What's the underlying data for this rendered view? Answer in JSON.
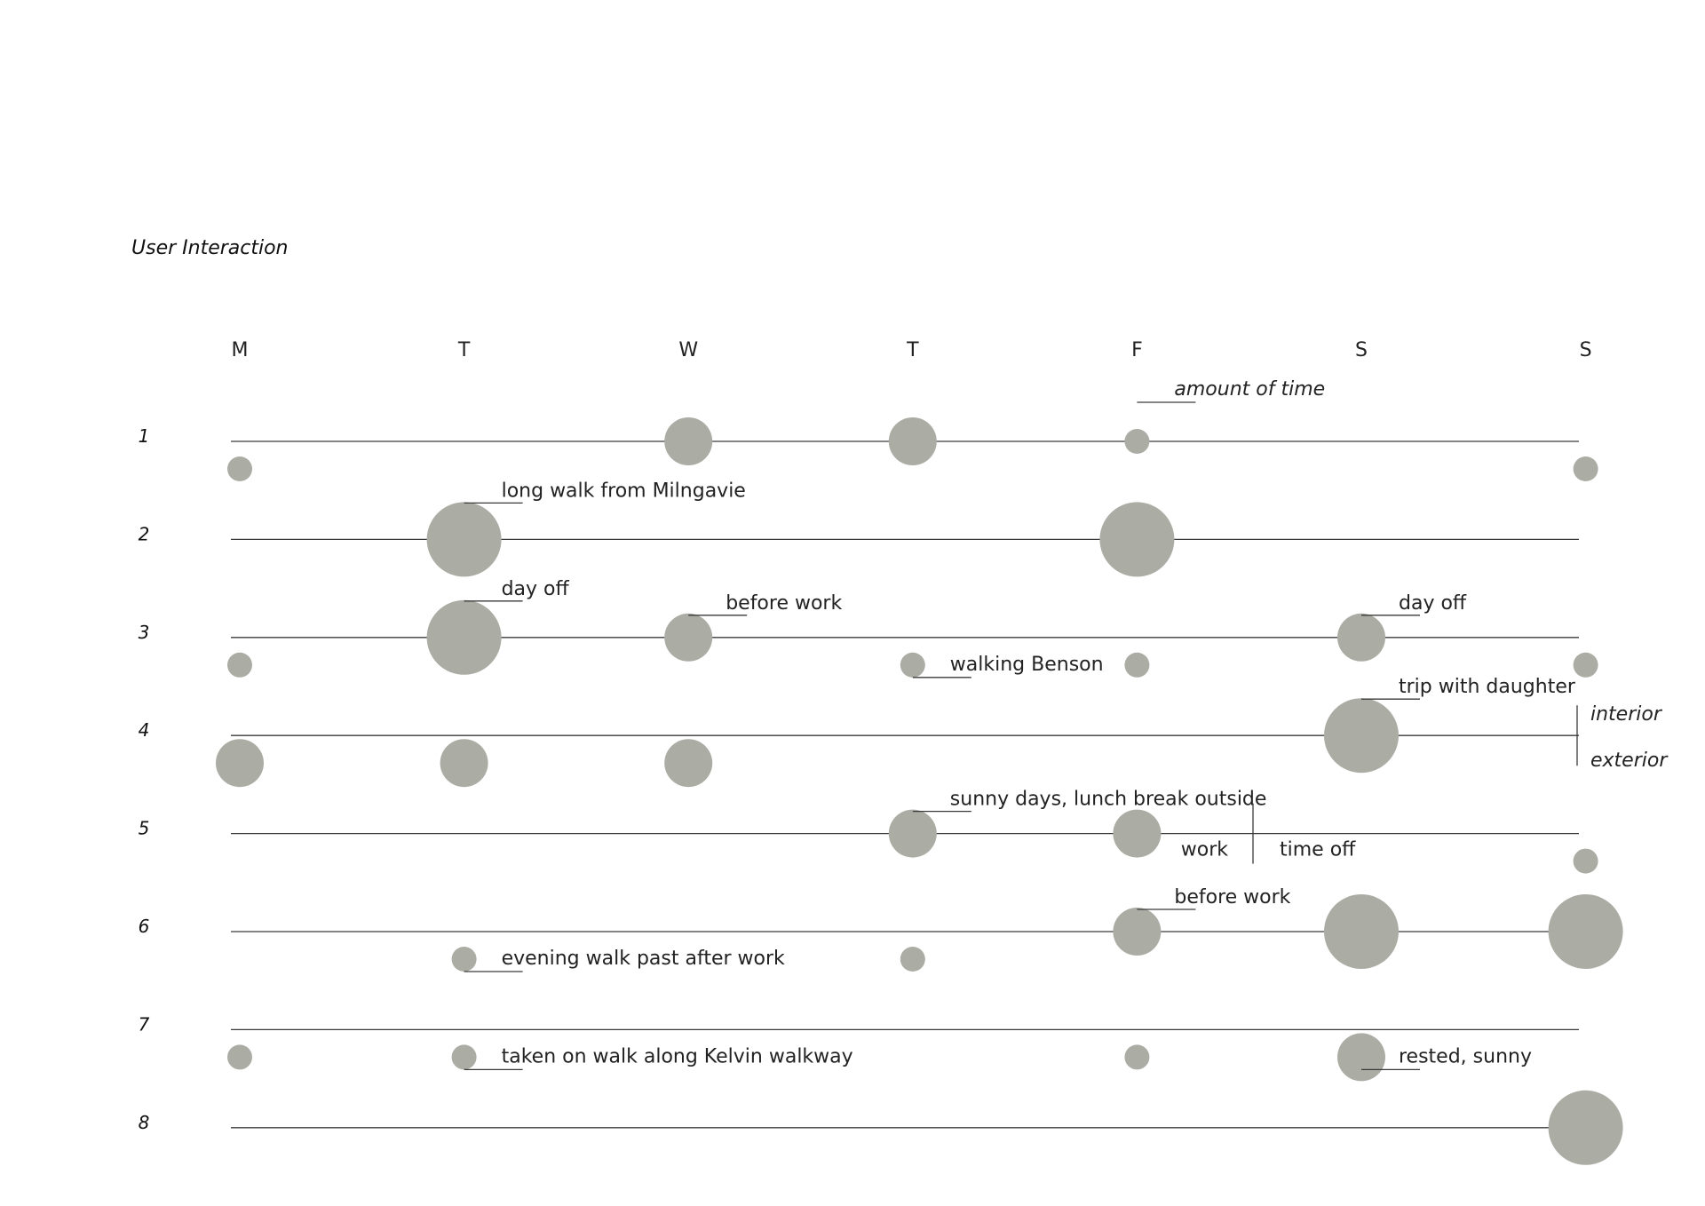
{
  "chart_data": {
    "type": "scatter",
    "title": "User Interaction",
    "days": [
      "M",
      "T",
      "W",
      "T",
      "F",
      "S",
      "S"
    ],
    "weeks": [
      "1",
      "2",
      "3",
      "4",
      "5",
      "6",
      "7",
      "8"
    ],
    "size_legend": "amount of time",
    "side_legend": {
      "above": "interior",
      "below": "exterior"
    },
    "side_legend_2": {
      "left": "work",
      "right": "time off"
    },
    "points": [
      {
        "week": 1,
        "day": 3,
        "place": "interior",
        "size": 2
      },
      {
        "week": 1,
        "day": 4,
        "place": "interior",
        "size": 2
      },
      {
        "week": 1,
        "day": 5,
        "place": "interior",
        "size": 1
      },
      {
        "week": 1,
        "day": 1,
        "place": "exterior",
        "size": 1
      },
      {
        "week": 1,
        "day": 7,
        "place": "exterior",
        "size": 1
      },
      {
        "week": 2,
        "day": 2,
        "place": "interior",
        "size": 3
      },
      {
        "week": 2,
        "day": 5,
        "place": "interior",
        "size": 3
      },
      {
        "week": 3,
        "day": 2,
        "place": "interior",
        "size": 3
      },
      {
        "week": 3,
        "day": 3,
        "place": "interior",
        "size": 2
      },
      {
        "week": 3,
        "day": 6,
        "place": "interior",
        "size": 2
      },
      {
        "week": 3,
        "day": 1,
        "place": "exterior",
        "size": 1
      },
      {
        "week": 3,
        "day": 4,
        "place": "exterior",
        "size": 1
      },
      {
        "week": 3,
        "day": 5,
        "place": "exterior",
        "size": 1
      },
      {
        "week": 3,
        "day": 7,
        "place": "exterior",
        "size": 1
      },
      {
        "week": 4,
        "day": 6,
        "place": "interior",
        "size": 3
      },
      {
        "week": 4,
        "day": 1,
        "place": "exterior",
        "size": 2
      },
      {
        "week": 4,
        "day": 2,
        "place": "exterior",
        "size": 2
      },
      {
        "week": 4,
        "day": 3,
        "place": "exterior",
        "size": 2
      },
      {
        "week": 5,
        "day": 4,
        "place": "interior",
        "size": 2
      },
      {
        "week": 5,
        "day": 5,
        "place": "interior",
        "size": 2
      },
      {
        "week": 5,
        "day": 7,
        "place": "exterior",
        "size": 1
      },
      {
        "week": 6,
        "day": 5,
        "place": "interior",
        "size": 2
      },
      {
        "week": 6,
        "day": 6,
        "place": "interior",
        "size": 3
      },
      {
        "week": 6,
        "day": 7,
        "place": "interior",
        "size": 3
      },
      {
        "week": 6,
        "day": 2,
        "place": "exterior",
        "size": 1
      },
      {
        "week": 6,
        "day": 4,
        "place": "exterior",
        "size": 1
      },
      {
        "week": 7,
        "day": 1,
        "place": "exterior",
        "size": 1
      },
      {
        "week": 7,
        "day": 2,
        "place": "exterior",
        "size": 1
      },
      {
        "week": 7,
        "day": 5,
        "place": "exterior",
        "size": 1
      },
      {
        "week": 7,
        "day": 6,
        "place": "exterior",
        "size": 2
      },
      {
        "week": 8,
        "day": 7,
        "place": "interior",
        "size": 3
      }
    ],
    "annotations": [
      {
        "week": 2,
        "day": 2,
        "position": "above",
        "text": "long walk from Milngavie"
      },
      {
        "week": 3,
        "day": 2,
        "position": "above",
        "text": "day off"
      },
      {
        "week": 3,
        "day": 3,
        "position": "above",
        "text": "before work"
      },
      {
        "week": 3,
        "day": 6,
        "position": "above",
        "text": "day off"
      },
      {
        "week": 3,
        "day": 4,
        "position": "below",
        "text": "walking Benson"
      },
      {
        "week": 4,
        "day": 6,
        "position": "above",
        "text": "trip with daughter"
      },
      {
        "week": 5,
        "day": 4,
        "position": "above",
        "text": "sunny days, lunch break outside"
      },
      {
        "week": 6,
        "day": 5,
        "position": "above",
        "text": "before work"
      },
      {
        "week": 6,
        "day": 2,
        "position": "below",
        "text": "evening walk past after work"
      },
      {
        "week": 7,
        "day": 2,
        "position": "below",
        "text": "taken on walk along Kelvin walkway"
      },
      {
        "week": 7,
        "day": 6,
        "position": "below",
        "text": "rested, sunny"
      }
    ]
  },
  "colors": {
    "dot": "#abada5",
    "line": "#3a3a3a"
  }
}
